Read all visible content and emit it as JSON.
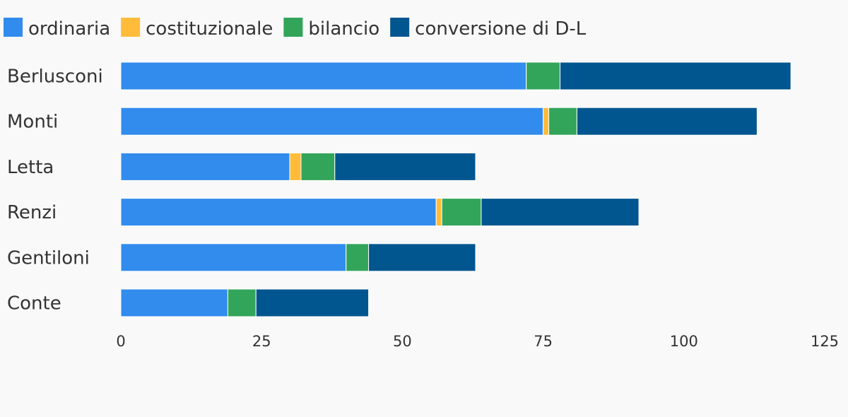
{
  "chart_data": {
    "type": "bar",
    "orientation": "horizontal",
    "stacked": true,
    "categories": [
      "Berlusconi",
      "Monti",
      "Letta",
      "Renzi",
      "Gentiloni",
      "Conte"
    ],
    "series": [
      {
        "name": "ordinaria",
        "color": "#318ced",
        "values": [
          72,
          75,
          30,
          56,
          40,
          19
        ]
      },
      {
        "name": "costituzionale",
        "color": "#ffbc3b",
        "values": [
          0,
          1,
          2,
          1,
          0,
          0
        ]
      },
      {
        "name": "bilancio",
        "color": "#32a55a",
        "values": [
          6,
          5,
          6,
          7,
          4,
          5
        ]
      },
      {
        "name": "conversione di D-L",
        "color": "#02568f",
        "values": [
          41,
          32,
          25,
          28,
          19,
          20
        ]
      }
    ],
    "xlim": [
      0,
      125
    ],
    "xticks": [
      0,
      25,
      50,
      75,
      100,
      125
    ],
    "xtick_labels": [
      "0",
      "25",
      "50",
      "75",
      "100",
      "125"
    ],
    "grid": false,
    "legend": "top-left",
    "title": "",
    "xlabel": "",
    "ylabel": ""
  }
}
